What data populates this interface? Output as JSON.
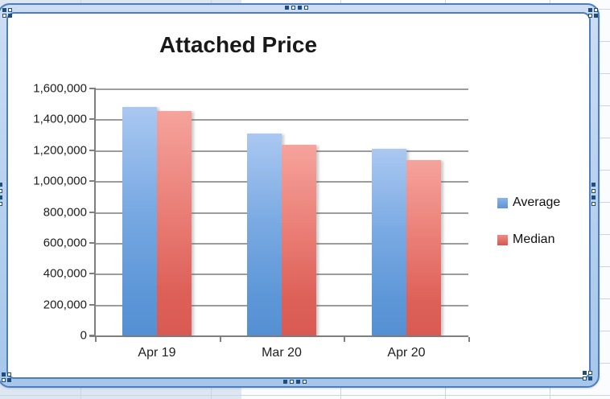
{
  "app_context": {
    "surface": "spreadsheet-worksheet",
    "selection": "chart-object-selected"
  },
  "chart_data": {
    "type": "bar",
    "title": "Attached Price",
    "categories": [
      "Apr 19",
      "Mar 20",
      "Apr 20"
    ],
    "series": [
      {
        "name": "Average",
        "values": [
          1480000,
          1310000,
          1210000
        ],
        "color": "#5e97d8"
      },
      {
        "name": "Median",
        "values": [
          1455000,
          1235000,
          1135000
        ],
        "color": "#dd6159"
      }
    ],
    "ylim": [
      0,
      1600000
    ],
    "ytick_step": 200000,
    "ytick_labels": [
      "0",
      "200,000",
      "400,000",
      "600,000",
      "800,000",
      "1,000,000",
      "1,200,000",
      "1,400,000",
      "1,600,000"
    ],
    "xlabel": "",
    "ylabel": "",
    "grid": true,
    "legend_position": "right",
    "colors": {
      "bar_blue_top": "#aac8f1",
      "bar_blue_bottom": "#5390d3",
      "bar_red_top": "#f5a39c",
      "bar_red_bottom": "#d95a52",
      "gridline": "#9c9c9c",
      "axis": "#7f7f7f",
      "frame_border": "#4f7dbc",
      "frame_band": "#b7d1ef",
      "handle_dark": "#1f4e79"
    }
  }
}
